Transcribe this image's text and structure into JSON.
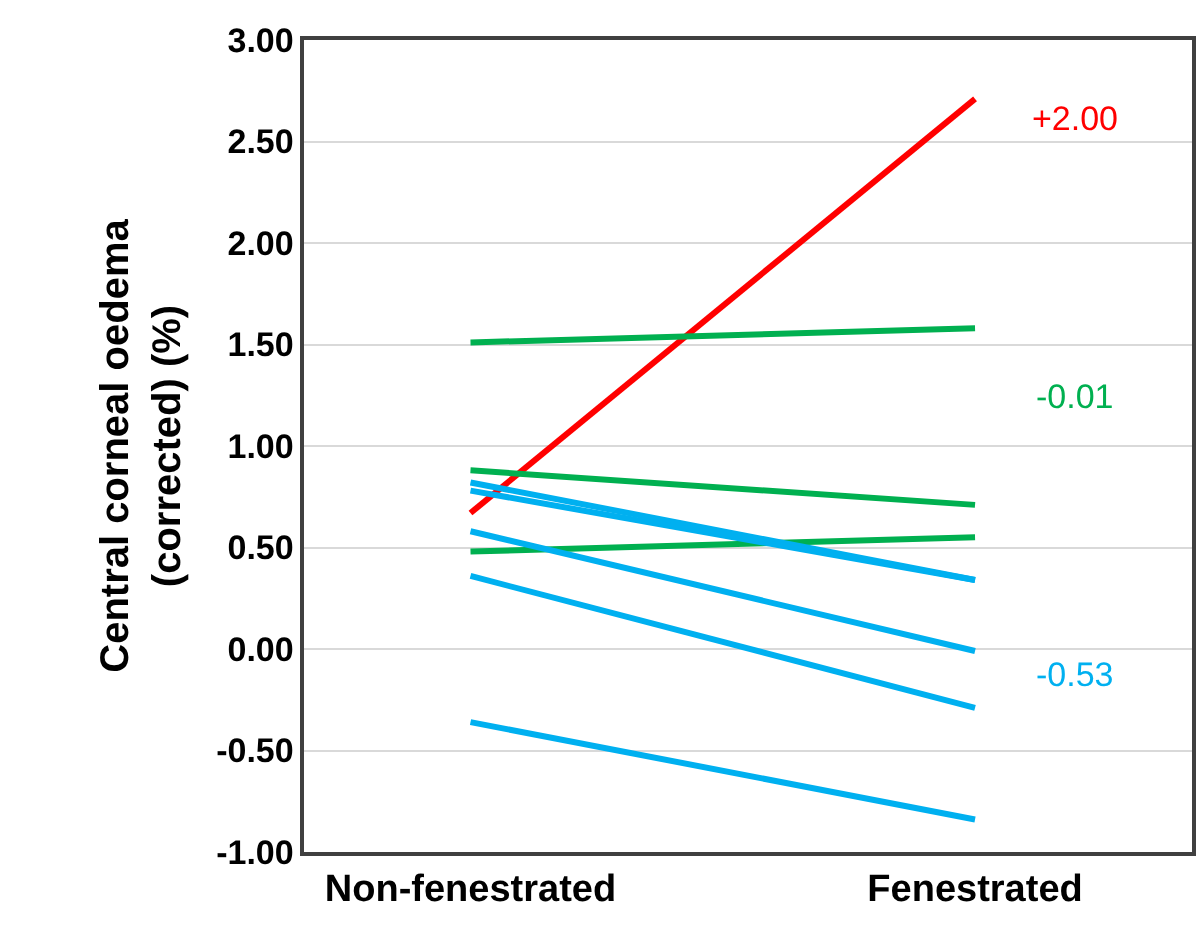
{
  "chart_data": {
    "type": "line",
    "ylabel": "Central corneal oedema (corrected) (%)",
    "categories": [
      "Non-fenestrated",
      "Fenestrated"
    ],
    "series": [
      {
        "color": "#ff0000",
        "values": [
          0.67,
          2.71
        ]
      },
      {
        "color": "#00b050",
        "values": [
          1.51,
          1.58
        ]
      },
      {
        "color": "#00b050",
        "values": [
          0.88,
          0.71
        ]
      },
      {
        "color": "#00b050",
        "values": [
          0.48,
          0.55
        ]
      },
      {
        "color": "#00b0f0",
        "values": [
          0.82,
          0.34
        ]
      },
      {
        "color": "#00b0f0",
        "values": [
          0.78,
          0.34
        ]
      },
      {
        "color": "#00b0f0",
        "values": [
          0.58,
          -0.01
        ]
      },
      {
        "color": "#00b0f0",
        "values": [
          0.36,
          -0.29
        ]
      },
      {
        "color": "#00b0f0",
        "values": [
          -0.36,
          -0.84
        ]
      }
    ],
    "annotations": [
      "+2.00",
      "-0.01",
      "-0.53"
    ],
    "ylim": [
      -1.0,
      3.0
    ],
    "yticks": [
      {
        "value": -1,
        "label": "-1.00"
      },
      {
        "value": -0.5,
        "label": "-0.50"
      },
      {
        "value": 0,
        "label": "0.00"
      },
      {
        "value": 0.5,
        "label": "0.50"
      },
      {
        "value": 1,
        "label": "1.00"
      },
      {
        "value": 1.5,
        "label": "1.50"
      },
      {
        "value": 2,
        "label": "2.00"
      },
      {
        "value": 2.5,
        "label": "2.50"
      },
      {
        "value": 3,
        "label": "3.00"
      }
    ],
    "grid": "y",
    "marker": "none",
    "line_style": "solid"
  }
}
